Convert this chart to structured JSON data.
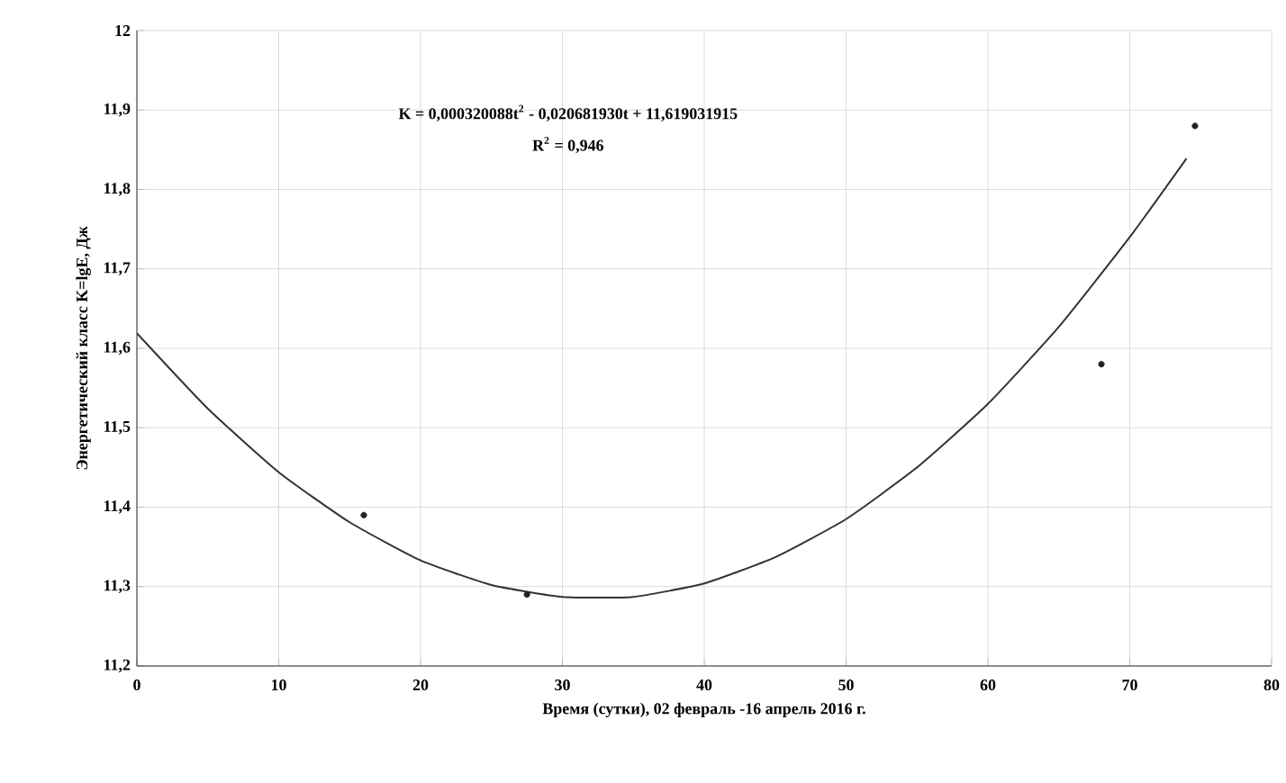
{
  "chart_data": {
    "type": "scatter",
    "xlabel": "Время (сутки), 02 февраль -16 апрель 2016 г.",
    "ylabel": "Энергетический класс K=lgE, Дж",
    "annotations": [
      "K = 0,000320088t$^{2}$ - 0,020681930t + 11,619031915",
      "R$^{2}$ = 0,946"
    ],
    "xlim": [
      0,
      80
    ],
    "xticks": [
      0,
      10,
      20,
      30,
      40,
      50,
      60,
      70,
      80
    ],
    "ylim": [
      11.2,
      12
    ],
    "yticks": [
      {
        "value": 11.2,
        "label": "11,2"
      },
      {
        "value": 11.3,
        "label": "11,3"
      },
      {
        "value": 11.4,
        "label": "11,4"
      },
      {
        "value": 11.5,
        "label": "11,5"
      },
      {
        "value": 11.6,
        "label": "11,6"
      },
      {
        "value": 11.7,
        "label": "11,7"
      },
      {
        "value": 11.8,
        "label": "11,8"
      },
      {
        "value": 11.9,
        "label": "11,9"
      },
      12
    ],
    "grid": true,
    "marker": "circle",
    "series": [
      {
        "color": "#222222",
        "x": [
          16,
          27.5,
          68,
          74.6
        ],
        "values": [
          11.39,
          11.29,
          11.58,
          11.88
        ]
      },
      {
        "type": "line",
        "color": "#333333",
        "marker": "none",
        "x": [
          0,
          5,
          10,
          15,
          20,
          25,
          30,
          35,
          40,
          45,
          50,
          55,
          60,
          65,
          70,
          74
        ],
        "values": [
          11.619,
          11.524,
          11.444,
          11.381,
          11.333,
          11.302,
          11.287,
          11.287,
          11.304,
          11.337,
          11.385,
          11.45,
          11.53,
          11.627,
          11.74,
          11.839
        ]
      }
    ]
  }
}
